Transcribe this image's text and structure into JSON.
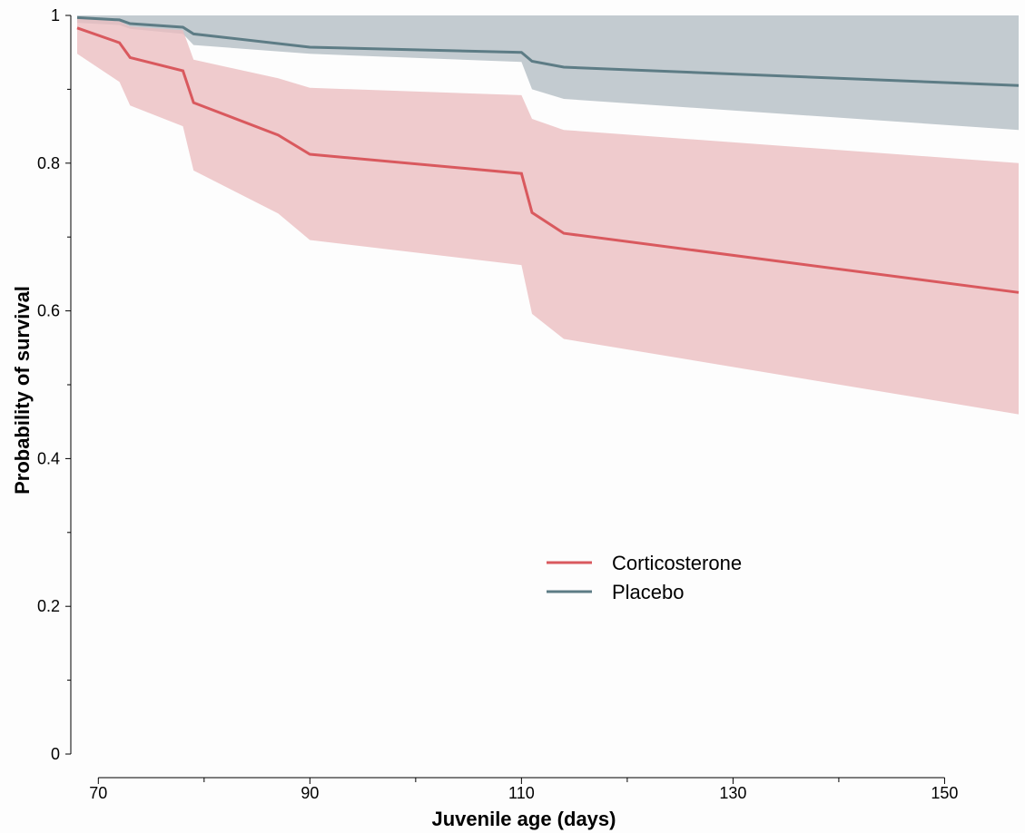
{
  "chart_data": {
    "type": "line",
    "title": "",
    "xlabel": "Juvenile age (days)",
    "ylabel": "Probability of survival",
    "xlim": [
      68,
      157
    ],
    "ylim": [
      0,
      1
    ],
    "x_ticks": [
      70,
      90,
      110,
      130,
      150
    ],
    "x_minor_ticks": [
      80,
      100,
      120,
      140
    ],
    "y_ticks": [
      0,
      0.2,
      0.4,
      0.6,
      0.8,
      1
    ],
    "y_tick_labels": [
      "0",
      "0.2",
      "0.4",
      "0.6",
      "0.8",
      "1"
    ],
    "x_tick_labels": [
      "70",
      "90",
      "110",
      "130",
      "150"
    ],
    "grid": false,
    "legend_position": "center-right",
    "series": [
      {
        "name": "Corticosterone",
        "color": "#d9595e",
        "band_color": "#ebbcbf",
        "x": [
          68,
          72,
          73,
          78,
          79,
          87,
          90,
          110,
          111,
          114,
          157
        ],
        "y": [
          0.983,
          0.963,
          0.943,
          0.925,
          0.882,
          0.838,
          0.812,
          0.786,
          0.733,
          0.705,
          0.625
        ],
        "lower": [
          0.948,
          0.91,
          0.878,
          0.85,
          0.79,
          0.732,
          0.696,
          0.662,
          0.596,
          0.562,
          0.46
        ],
        "upper": [
          0.996,
          0.992,
          0.985,
          0.98,
          0.94,
          0.915,
          0.902,
          0.892,
          0.86,
          0.845,
          0.8
        ]
      },
      {
        "name": "Placebo",
        "color": "#5d7c85",
        "band_color": "#c3cbd0",
        "x": [
          68,
          72,
          73,
          78,
          79,
          90,
          110,
          111,
          114,
          157
        ],
        "y": [
          0.997,
          0.994,
          0.989,
          0.984,
          0.975,
          0.957,
          0.95,
          0.938,
          0.93,
          0.905
        ],
        "lower": [
          0.99,
          0.987,
          0.982,
          0.975,
          0.96,
          0.948,
          0.937,
          0.9,
          0.887,
          0.845
        ],
        "upper": [
          1,
          1,
          1,
          1,
          1,
          1,
          1,
          1,
          1,
          1
        ]
      }
    ]
  }
}
